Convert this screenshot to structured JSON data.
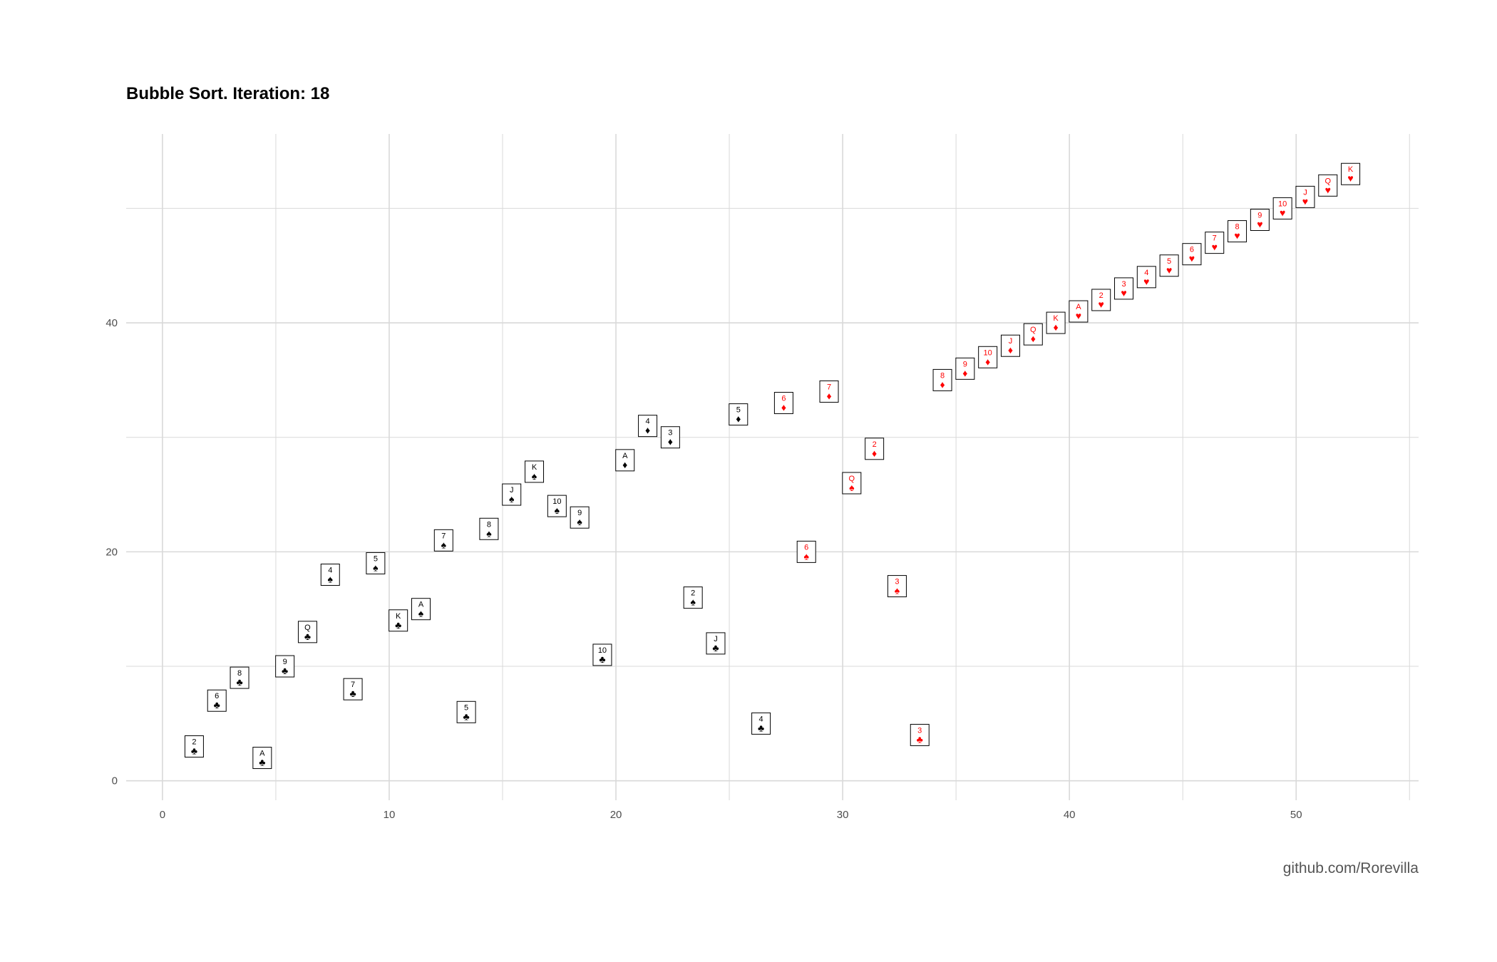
{
  "title": "Bubble Sort. Iteration: 18",
  "caption": "github.com/Rorevilla",
  "colors": {
    "black_suit": "#000000",
    "red_suit": "#ff0000",
    "grid": "#d9d9d9"
  },
  "chart_data": {
    "type": "scatter",
    "title": "Bubble Sort. Iteration: 18",
    "xlabel": "",
    "ylabel": "",
    "xlim": [
      -1.6,
      55.4
    ],
    "ylim": [
      -1.7,
      56.5
    ],
    "x_ticks": [
      0,
      10,
      20,
      30,
      40,
      50
    ],
    "y_ticks": [
      0,
      20,
      40
    ],
    "grid": true,
    "legend": "none",
    "marker": "playing-card",
    "points": [
      {
        "x": 1.4,
        "y": 3,
        "rank": "2",
        "suit": "clubs"
      },
      {
        "x": 2.4,
        "y": 7,
        "rank": "6",
        "suit": "clubs"
      },
      {
        "x": 3.4,
        "y": 9,
        "rank": "8",
        "suit": "clubs"
      },
      {
        "x": 4.4,
        "y": 2,
        "rank": "A",
        "suit": "clubs"
      },
      {
        "x": 5.4,
        "y": 10,
        "rank": "9",
        "suit": "clubs"
      },
      {
        "x": 6.4,
        "y": 13,
        "rank": "Q",
        "suit": "clubs"
      },
      {
        "x": 7.4,
        "y": 18,
        "rank": "4",
        "suit": "spades"
      },
      {
        "x": 8.4,
        "y": 8,
        "rank": "7",
        "suit": "clubs"
      },
      {
        "x": 9.4,
        "y": 19,
        "rank": "5",
        "suit": "spades"
      },
      {
        "x": 10.4,
        "y": 14,
        "rank": "K",
        "suit": "clubs"
      },
      {
        "x": 11.4,
        "y": 15,
        "rank": "A",
        "suit": "spades"
      },
      {
        "x": 12.4,
        "y": 21,
        "rank": "7",
        "suit": "spades"
      },
      {
        "x": 13.4,
        "y": 6,
        "rank": "5",
        "suit": "clubs"
      },
      {
        "x": 14.4,
        "y": 22,
        "rank": "8",
        "suit": "spades"
      },
      {
        "x": 15.4,
        "y": 25,
        "rank": "J",
        "suit": "spades"
      },
      {
        "x": 16.4,
        "y": 27,
        "rank": "K",
        "suit": "spades"
      },
      {
        "x": 17.4,
        "y": 24,
        "rank": "10",
        "suit": "spades"
      },
      {
        "x": 18.4,
        "y": 23,
        "rank": "9",
        "suit": "spades"
      },
      {
        "x": 19.4,
        "y": 11,
        "rank": "10",
        "suit": "clubs"
      },
      {
        "x": 20.4,
        "y": 28,
        "rank": "A",
        "suit": "diamonds_black"
      },
      {
        "x": 21.4,
        "y": 31,
        "rank": "4",
        "suit": "diamonds_black"
      },
      {
        "x": 22.4,
        "y": 30,
        "rank": "3",
        "suit": "diamonds_black"
      },
      {
        "x": 23.4,
        "y": 16,
        "rank": "2",
        "suit": "spades"
      },
      {
        "x": 24.4,
        "y": 12,
        "rank": "J",
        "suit": "clubs"
      },
      {
        "x": 25.4,
        "y": 32,
        "rank": "5",
        "suit": "diamonds_black"
      },
      {
        "x": 26.4,
        "y": 5,
        "rank": "4",
        "suit": "clubs"
      },
      {
        "x": 27.4,
        "y": 33,
        "rank": "6",
        "suit": "diamonds"
      },
      {
        "x": 28.4,
        "y": 20,
        "rank": "6",
        "suit": "spades_red"
      },
      {
        "x": 29.4,
        "y": 34,
        "rank": "7",
        "suit": "diamonds"
      },
      {
        "x": 30.4,
        "y": 26,
        "rank": "Q",
        "suit": "spades_red"
      },
      {
        "x": 31.4,
        "y": 29,
        "rank": "2",
        "suit": "diamonds"
      },
      {
        "x": 32.4,
        "y": 17,
        "rank": "3",
        "suit": "spades_red"
      },
      {
        "x": 33.4,
        "y": 4,
        "rank": "3",
        "suit": "clubs_red"
      },
      {
        "x": 34.4,
        "y": 35,
        "rank": "8",
        "suit": "diamonds"
      },
      {
        "x": 35.4,
        "y": 36,
        "rank": "9",
        "suit": "diamonds"
      },
      {
        "x": 36.4,
        "y": 37,
        "rank": "10",
        "suit": "diamonds"
      },
      {
        "x": 37.4,
        "y": 38,
        "rank": "J",
        "suit": "diamonds"
      },
      {
        "x": 38.4,
        "y": 39,
        "rank": "Q",
        "suit": "diamonds"
      },
      {
        "x": 39.4,
        "y": 40,
        "rank": "K",
        "suit": "diamonds"
      },
      {
        "x": 40.4,
        "y": 41,
        "rank": "A",
        "suit": "hearts"
      },
      {
        "x": 41.4,
        "y": 42,
        "rank": "2",
        "suit": "hearts"
      },
      {
        "x": 42.4,
        "y": 43,
        "rank": "3",
        "suit": "hearts"
      },
      {
        "x": 43.4,
        "y": 44,
        "rank": "4",
        "suit": "hearts"
      },
      {
        "x": 44.4,
        "y": 45,
        "rank": "5",
        "suit": "hearts"
      },
      {
        "x": 45.4,
        "y": 46,
        "rank": "6",
        "suit": "hearts"
      },
      {
        "x": 46.4,
        "y": 47,
        "rank": "7",
        "suit": "hearts"
      },
      {
        "x": 47.4,
        "y": 48,
        "rank": "8",
        "suit": "hearts"
      },
      {
        "x": 48.4,
        "y": 49,
        "rank": "9",
        "suit": "hearts"
      },
      {
        "x": 49.4,
        "y": 50,
        "rank": "10",
        "suit": "hearts"
      },
      {
        "x": 50.4,
        "y": 51,
        "rank": "J",
        "suit": "hearts"
      },
      {
        "x": 51.4,
        "y": 52,
        "rank": "Q",
        "suit": "hearts"
      },
      {
        "x": 52.4,
        "y": 53,
        "rank": "K",
        "suit": "hearts"
      }
    ]
  }
}
